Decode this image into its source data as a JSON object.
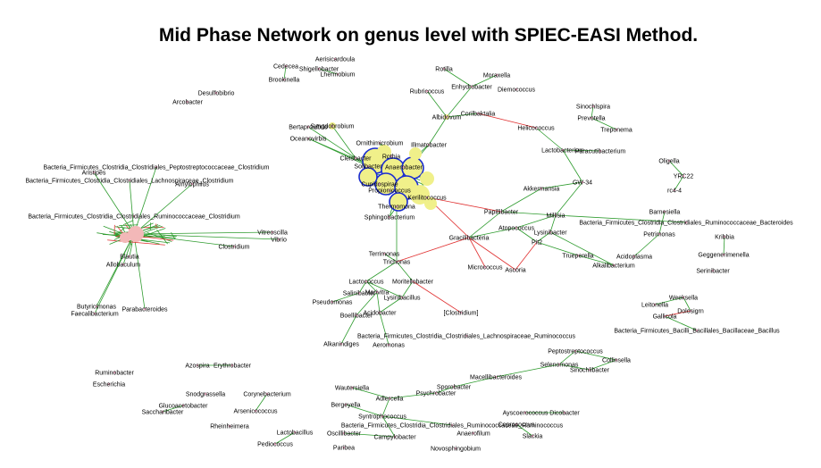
{
  "title": "Mid Phase Network on genus level with SPIEC-EASI Method.",
  "colors": {
    "positive_edge": "#2e9b2e",
    "negative_edge": "#e03030",
    "node_fill": "#f0f08a",
    "hub_ring": "#1a2ccf"
  },
  "nodes": [
    "Aerisicardoula",
    "Cedecea",
    "Shigellobacter",
    "Lhermobium",
    "Brookinella",
    "Desulfobibrio",
    "Arcobacter",
    "Rotilla",
    "Moraxella",
    "Enhydrobacter",
    "Diemococcus",
    "Rubricoccus",
    "Albidovum",
    "Corilbaktalia",
    "Bertaprovibrio",
    "Syngdobrobium",
    "Oceanovirbis",
    "Helicococcus",
    "Sinochlspira",
    "Prevotella",
    "Treponema",
    "Ornithimicrobium",
    "Illmatobacter",
    "Cleisbacter",
    "Solibacter",
    "Lactobacterium",
    "Paracutibacterium",
    "Sphingobacterium",
    "Rothia",
    "Anaerobacter",
    "Cupidospirae",
    "Propionicoccus",
    "Thermomona",
    "Kerilitococcus",
    "Terrimonas",
    "Trichonas",
    "Akkermansia",
    "GW-34",
    "Oligella",
    "YRC22",
    "rc4-4",
    "Papillibacter",
    "Millisia",
    "Atopococcus",
    "Lysinibacter",
    "Pit2",
    "Barnesiella",
    "Petrimonas",
    "Kribbia",
    "Acidoplasma",
    "Geggenerimenella",
    "Serinibacter",
    "Gracilibacteria",
    "Alkalibacterium",
    "Micrococcus",
    "Ascoria",
    "Trueperella",
    "Bacteria_Firmicutes_Clostridia_Clostridiales_Peptostreptococcaceae_Clostridium",
    "Bacteria_Firmicutes_Clostridia_Clostridiales_Lachnospiraceae_Clostridium",
    "Aristipes",
    "Amylophilus",
    "Bacteria_Firmicutes_Clostridia_Clostridiales_Ruminococcaceae_Clostridium",
    "Bacteria_Firmicutes_Clostridia_Clostridiales_Ruminococcaceae_Bacteroides",
    "Vitreoscilla",
    "Vibrio",
    "Clostridium",
    "Blautia",
    "Allobaculum",
    "Butyricimonas",
    "Faecalibacterium",
    "Parabacteroides",
    "Lactococcus",
    "Moritellobacter",
    "Salinibacter",
    "Marivitra",
    "Lysinibacillus",
    "Pseudomonas",
    "Boellibacter",
    "Acidobacter",
    "[Clostridium]",
    "Weeksella",
    "Leitonella",
    "Dolosigrn",
    "Gallicola",
    "Bacteria_Firmicutes_Bacilli_Bacillales_Bacillaceae_Bacillus",
    "Bacteria_Firmicutes_Clostridia_Clostridiales_Lachnospiraceae_Ruminococcus",
    "Alkanindiges",
    "Aeromonas",
    "Peptostreptococcus",
    "Selenomonas",
    "Collinsella",
    "Sinochlibacter",
    "Ruminobacter",
    "Azospira",
    "Erythrobacter",
    "Escherichia",
    "Macellibacteroides",
    "Wautersiella",
    "Sporobacter",
    "Adlercella",
    "Psychrobacter",
    "Snodgrassella",
    "Corynebacterium",
    "Glucoacetobacter",
    "Saccharibacter",
    "Bergeyella",
    "Arsenicococcus",
    "Syntrophococcus",
    "Rheinheimera",
    "Bacteria_Firmicutes_Clostridia_Clostridiales_Ruminococcaceae_Ruminococcus",
    "Ayscoerococcus",
    "Dicobacter",
    "Oscillibacter",
    "Campylobacter",
    "Lactobacillus",
    "Pediococcus",
    "Paribea",
    "Novosphingobium",
    "Anaerofilum",
    "Coprococcus",
    "Slackia"
  ]
}
